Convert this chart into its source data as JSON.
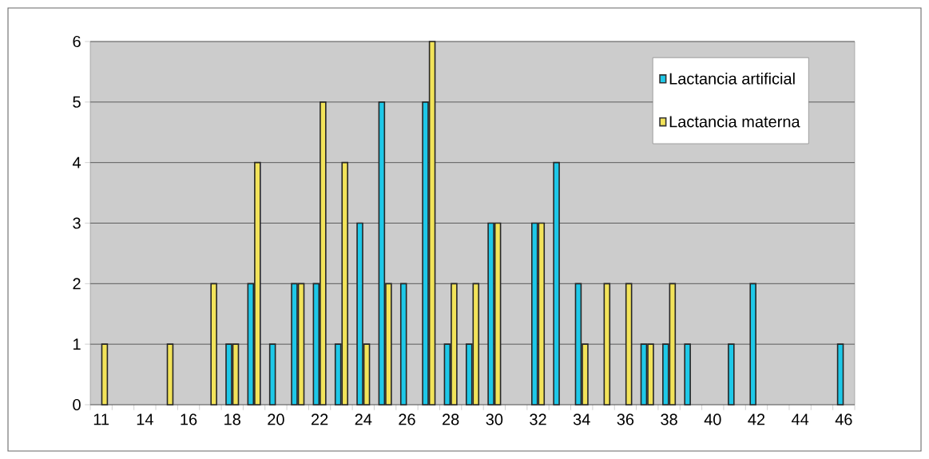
{
  "chart_data": {
    "type": "bar",
    "categories": [
      "11",
      null,
      "14",
      null,
      "16",
      null,
      "18",
      null,
      "20",
      null,
      "22",
      null,
      "24",
      null,
      "26",
      null,
      "28",
      null,
      "30",
      null,
      "32",
      null,
      "34",
      null,
      "36",
      null,
      "38",
      null,
      "40",
      null,
      "42",
      null,
      "44",
      null,
      "46"
    ],
    "series": [
      {
        "name": "Lactancia artificial",
        "color": "#1ec8e8",
        "values": [
          null,
          null,
          null,
          null,
          null,
          null,
          1,
          2,
          1,
          2,
          2,
          1,
          3,
          5,
          2,
          5,
          1,
          1,
          3,
          null,
          3,
          4,
          2,
          null,
          null,
          1,
          1,
          1,
          null,
          1,
          2,
          null,
          null,
          null,
          1
        ]
      },
      {
        "name": "Lactancia materna",
        "color": "#f2e35a",
        "values": [
          1,
          null,
          null,
          1,
          null,
          2,
          1,
          4,
          null,
          2,
          5,
          4,
          1,
          2,
          null,
          6,
          2,
          2,
          3,
          null,
          3,
          null,
          1,
          2,
          2,
          1,
          2,
          null,
          null,
          null,
          null,
          null,
          null,
          null,
          null
        ]
      }
    ],
    "ylim": [
      0,
      6
    ],
    "yticks": [
      0,
      1,
      2,
      3,
      4,
      5,
      6
    ],
    "grid": "y",
    "legend": "top right"
  }
}
